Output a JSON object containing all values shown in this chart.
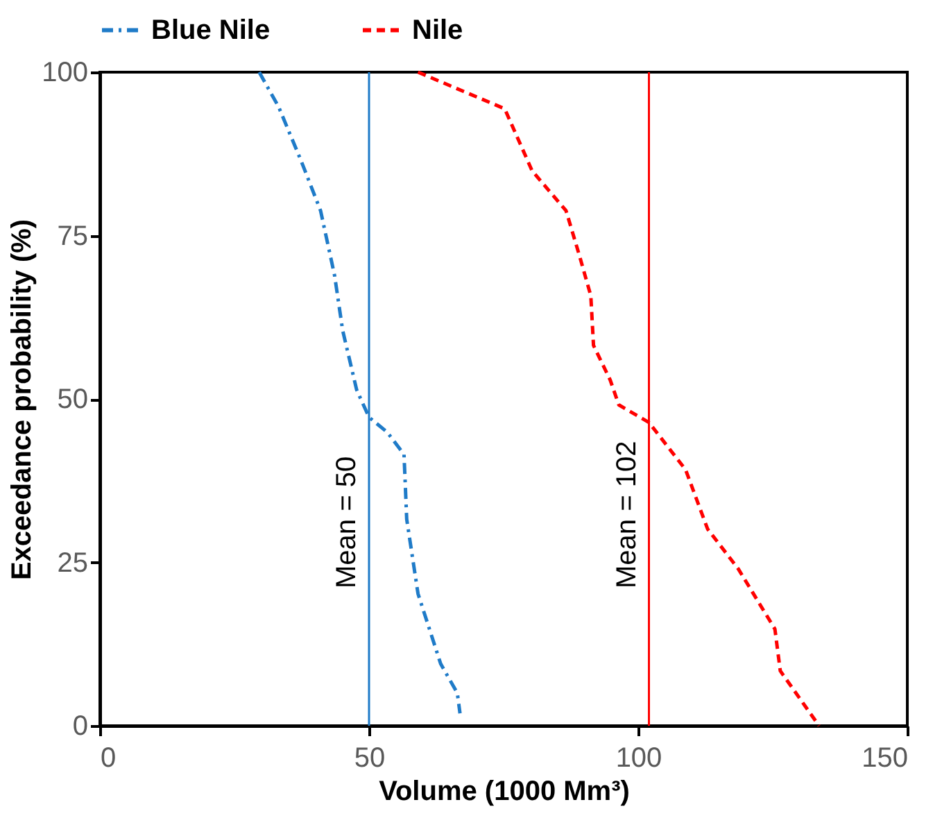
{
  "chart_data": {
    "type": "line",
    "xlabel": "Volume (1000 Mm³)",
    "ylabel": "Exceedance probability (%)",
    "xlim": [
      0,
      150
    ],
    "xticks": [
      0,
      50,
      100,
      150
    ],
    "ylim": [
      0,
      100
    ],
    "yticks": [
      0,
      25,
      50,
      75,
      100
    ],
    "grid": false,
    "legend": "top",
    "marker": "none",
    "series": [
      {
        "name": "Blue Nile",
        "color": "#1f7bc8",
        "line_style": "dashdot",
        "x": [
          29.6,
          33.2,
          37.4,
          41,
          43.6,
          45.1,
          47.7,
          50,
          53.4,
          56.5,
          57,
          59.1,
          63.3,
          66.4,
          66.9
        ],
        "values": [
          100,
          94.7,
          86.4,
          78.8,
          68.9,
          60.5,
          51.4,
          47.2,
          44.9,
          41.5,
          31.6,
          20.2,
          9.5,
          5,
          1.9
        ]
      },
      {
        "name": "Nile",
        "color": "#ff0000",
        "line_style": "dashed",
        "x": [
          59.1,
          75.2,
          80.3,
          86.6,
          89.1,
          91.2,
          91.7,
          94.8,
          96.4,
          102,
          108.8,
          112.9,
          118.6,
          125.4,
          126.4,
          133.6
        ],
        "values": [
          100,
          94.4,
          84.9,
          78.8,
          71.9,
          65.8,
          58.2,
          52.9,
          49.1,
          46.4,
          39.2,
          30.1,
          24,
          14.8,
          8.4,
          0
        ]
      }
    ],
    "ref_lines": [
      {
        "axis": "x",
        "value": 50,
        "label": "Mean = 50",
        "color": "#1f7bc8",
        "line_style": "solid"
      },
      {
        "axis": "x",
        "value": 102,
        "label": "Mean = 102",
        "color": "#ff0000",
        "line_style": "solid"
      }
    ]
  }
}
